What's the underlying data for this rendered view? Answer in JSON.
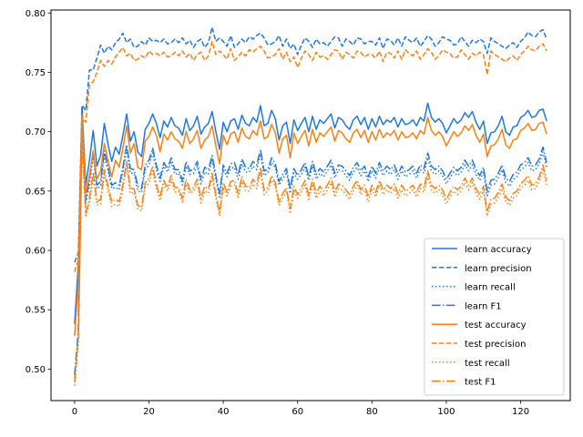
{
  "chart_data": {
    "type": "line",
    "title": "",
    "xlabel": "",
    "ylabel": "",
    "xlim": [
      -6.35,
      133.35
    ],
    "ylim": [
      0.4735,
      0.8025
    ],
    "xticks": [
      0,
      20,
      40,
      60,
      80,
      100,
      120
    ],
    "yticks": [
      0.5,
      0.55,
      0.6,
      0.65,
      0.7,
      0.75,
      0.8
    ],
    "xtick_labels": [
      "0",
      "20",
      "40",
      "60",
      "80",
      "100",
      "120"
    ],
    "ytick_labels": [
      "0.50",
      "0.55",
      "0.60",
      "0.65",
      "0.70",
      "0.75",
      "0.80"
    ],
    "grid": false,
    "legend_position": "bottom-right",
    "colors": {
      "learn": "#1f77e6",
      "test": "#ff7f0e"
    },
    "series": [
      {
        "name": "learn accuracy",
        "color": "#1f77e6",
        "linestyle": "solid",
        "values": [
          0.538,
          0.588,
          0.721,
          0.655,
          0.676,
          0.701,
          0.671,
          0.68,
          0.707,
          0.689,
          0.675,
          0.687,
          0.681,
          0.697,
          0.715,
          0.692,
          0.7,
          0.683,
          0.679,
          0.702,
          0.707,
          0.715,
          0.707,
          0.695,
          0.709,
          0.704,
          0.712,
          0.705,
          0.703,
          0.697,
          0.711,
          0.701,
          0.705,
          0.713,
          0.698,
          0.704,
          0.707,
          0.717,
          0.7,
          0.685,
          0.708,
          0.7,
          0.709,
          0.711,
          0.702,
          0.714,
          0.707,
          0.705,
          0.712,
          0.708,
          0.722,
          0.705,
          0.707,
          0.718,
          0.711,
          0.693,
          0.705,
          0.708,
          0.69,
          0.71,
          0.701,
          0.707,
          0.712,
          0.7,
          0.713,
          0.702,
          0.71,
          0.707,
          0.711,
          0.715,
          0.703,
          0.712,
          0.71,
          0.705,
          0.702,
          0.71,
          0.713,
          0.706,
          0.712,
          0.702,
          0.711,
          0.704,
          0.713,
          0.706,
          0.71,
          0.708,
          0.712,
          0.704,
          0.711,
          0.706,
          0.707,
          0.71,
          0.705,
          0.712,
          0.709,
          0.724,
          0.712,
          0.708,
          0.711,
          0.707,
          0.699,
          0.705,
          0.711,
          0.707,
          0.71,
          0.716,
          0.712,
          0.717,
          0.708,
          0.702,
          0.709,
          0.69,
          0.699,
          0.7,
          0.705,
          0.713,
          0.7,
          0.697,
          0.704,
          0.705,
          0.712,
          0.714,
          0.718,
          0.712,
          0.713,
          0.718,
          0.719,
          0.709
        ]
      },
      {
        "name": "learn precision",
        "color": "#1f77e6",
        "linestyle": "dashed",
        "values": [
          0.59,
          0.598,
          0.722,
          0.718,
          0.752,
          0.752,
          0.762,
          0.773,
          0.766,
          0.772,
          0.769,
          0.775,
          0.778,
          0.783,
          0.775,
          0.778,
          0.771,
          0.772,
          0.776,
          0.773,
          0.779,
          0.776,
          0.777,
          0.775,
          0.778,
          0.774,
          0.775,
          0.778,
          0.775,
          0.779,
          0.774,
          0.777,
          0.771,
          0.776,
          0.778,
          0.771,
          0.775,
          0.788,
          0.776,
          0.779,
          0.776,
          0.772,
          0.781,
          0.771,
          0.774,
          0.778,
          0.775,
          0.78,
          0.778,
          0.781,
          0.783,
          0.779,
          0.773,
          0.774,
          0.776,
          0.781,
          0.772,
          0.778,
          0.77,
          0.774,
          0.765,
          0.773,
          0.779,
          0.776,
          0.771,
          0.778,
          0.774,
          0.775,
          0.772,
          0.776,
          0.78,
          0.779,
          0.772,
          0.778,
          0.776,
          0.773,
          0.779,
          0.778,
          0.774,
          0.776,
          0.776,
          0.773,
          0.779,
          0.77,
          0.778,
          0.777,
          0.773,
          0.779,
          0.772,
          0.78,
          0.777,
          0.775,
          0.779,
          0.772,
          0.776,
          0.781,
          0.778,
          0.772,
          0.775,
          0.78,
          0.778,
          0.777,
          0.773,
          0.774,
          0.78,
          0.776,
          0.772,
          0.777,
          0.775,
          0.778,
          0.776,
          0.766,
          0.779,
          0.776,
          0.774,
          0.772,
          0.77,
          0.773,
          0.775,
          0.771,
          0.776,
          0.779,
          0.784,
          0.781,
          0.78,
          0.784,
          0.786,
          0.778
        ]
      },
      {
        "name": "learn recall",
        "color": "#1f77e6",
        "linestyle": "dotted",
        "values": [
          0.492,
          0.53,
          0.701,
          0.64,
          0.655,
          0.68,
          0.652,
          0.654,
          0.68,
          0.667,
          0.652,
          0.653,
          0.651,
          0.666,
          0.685,
          0.665,
          0.665,
          0.65,
          0.649,
          0.668,
          0.672,
          0.682,
          0.668,
          0.658,
          0.671,
          0.666,
          0.674,
          0.664,
          0.665,
          0.655,
          0.671,
          0.664,
          0.665,
          0.671,
          0.656,
          0.666,
          0.664,
          0.676,
          0.66,
          0.645,
          0.668,
          0.662,
          0.669,
          0.67,
          0.66,
          0.673,
          0.666,
          0.666,
          0.671,
          0.668,
          0.681,
          0.663,
          0.665,
          0.674,
          0.67,
          0.655,
          0.66,
          0.666,
          0.648,
          0.665,
          0.66,
          0.664,
          0.67,
          0.659,
          0.671,
          0.66,
          0.665,
          0.662,
          0.667,
          0.672,
          0.661,
          0.668,
          0.667,
          0.663,
          0.659,
          0.666,
          0.67,
          0.663,
          0.667,
          0.658,
          0.667,
          0.661,
          0.67,
          0.663,
          0.667,
          0.664,
          0.668,
          0.66,
          0.667,
          0.662,
          0.664,
          0.667,
          0.661,
          0.668,
          0.665,
          0.678,
          0.667,
          0.664,
          0.667,
          0.663,
          0.656,
          0.661,
          0.666,
          0.663,
          0.666,
          0.672,
          0.667,
          0.672,
          0.664,
          0.659,
          0.666,
          0.646,
          0.655,
          0.656,
          0.661,
          0.668,
          0.657,
          0.654,
          0.66,
          0.662,
          0.668,
          0.67,
          0.674,
          0.667,
          0.668,
          0.673,
          0.683,
          0.67
        ]
      },
      {
        "name": "learn F1",
        "color": "#1f77e6",
        "linestyle": "dashdot",
        "values": [
          0.495,
          0.532,
          0.705,
          0.642,
          0.66,
          0.684,
          0.655,
          0.658,
          0.684,
          0.67,
          0.655,
          0.657,
          0.655,
          0.67,
          0.689,
          0.669,
          0.668,
          0.654,
          0.652,
          0.672,
          0.676,
          0.686,
          0.672,
          0.661,
          0.674,
          0.669,
          0.678,
          0.668,
          0.668,
          0.659,
          0.675,
          0.667,
          0.668,
          0.675,
          0.66,
          0.67,
          0.668,
          0.68,
          0.663,
          0.648,
          0.672,
          0.665,
          0.673,
          0.674,
          0.664,
          0.677,
          0.67,
          0.669,
          0.675,
          0.672,
          0.685,
          0.667,
          0.668,
          0.678,
          0.673,
          0.658,
          0.664,
          0.669,
          0.652,
          0.669,
          0.663,
          0.668,
          0.674,
          0.662,
          0.675,
          0.664,
          0.669,
          0.666,
          0.671,
          0.676,
          0.665,
          0.672,
          0.671,
          0.667,
          0.663,
          0.67,
          0.674,
          0.667,
          0.671,
          0.662,
          0.671,
          0.665,
          0.674,
          0.667,
          0.671,
          0.668,
          0.672,
          0.664,
          0.671,
          0.666,
          0.668,
          0.671,
          0.665,
          0.672,
          0.669,
          0.682,
          0.671,
          0.668,
          0.671,
          0.667,
          0.66,
          0.665,
          0.67,
          0.667,
          0.67,
          0.676,
          0.671,
          0.676,
          0.668,
          0.663,
          0.67,
          0.65,
          0.659,
          0.66,
          0.665,
          0.672,
          0.661,
          0.658,
          0.664,
          0.666,
          0.672,
          0.674,
          0.678,
          0.671,
          0.672,
          0.677,
          0.687,
          0.674
        ]
      },
      {
        "name": "test accuracy",
        "color": "#ff7f0e",
        "linestyle": "solid",
        "values": [
          0.528,
          0.572,
          0.714,
          0.648,
          0.663,
          0.684,
          0.66,
          0.667,
          0.69,
          0.675,
          0.662,
          0.676,
          0.67,
          0.686,
          0.705,
          0.682,
          0.69,
          0.67,
          0.668,
          0.692,
          0.696,
          0.704,
          0.697,
          0.683,
          0.698,
          0.693,
          0.7,
          0.694,
          0.692,
          0.686,
          0.7,
          0.69,
          0.694,
          0.701,
          0.686,
          0.693,
          0.696,
          0.705,
          0.688,
          0.673,
          0.697,
          0.689,
          0.698,
          0.7,
          0.691,
          0.703,
          0.696,
          0.694,
          0.701,
          0.697,
          0.709,
          0.694,
          0.696,
          0.706,
          0.699,
          0.682,
          0.694,
          0.697,
          0.678,
          0.699,
          0.69,
          0.696,
          0.701,
          0.688,
          0.702,
          0.691,
          0.699,
          0.696,
          0.7,
          0.704,
          0.692,
          0.701,
          0.699,
          0.694,
          0.691,
          0.699,
          0.702,
          0.695,
          0.701,
          0.691,
          0.7,
          0.693,
          0.702,
          0.695,
          0.699,
          0.697,
          0.701,
          0.693,
          0.7,
          0.695,
          0.696,
          0.699,
          0.694,
          0.701,
          0.698,
          0.712,
          0.701,
          0.697,
          0.7,
          0.696,
          0.688,
          0.694,
          0.7,
          0.696,
          0.699,
          0.705,
          0.701,
          0.706,
          0.697,
          0.691,
          0.698,
          0.679,
          0.688,
          0.689,
          0.694,
          0.702,
          0.689,
          0.686,
          0.693,
          0.694,
          0.701,
          0.703,
          0.707,
          0.701,
          0.702,
          0.707,
          0.708,
          0.698
        ]
      },
      {
        "name": "test precision",
        "color": "#ff7f0e",
        "linestyle": "dashed",
        "values": [
          0.582,
          0.592,
          0.712,
          0.708,
          0.74,
          0.742,
          0.75,
          0.76,
          0.755,
          0.76,
          0.757,
          0.763,
          0.767,
          0.771,
          0.764,
          0.766,
          0.76,
          0.761,
          0.764,
          0.762,
          0.768,
          0.765,
          0.766,
          0.764,
          0.767,
          0.763,
          0.764,
          0.767,
          0.764,
          0.768,
          0.763,
          0.766,
          0.76,
          0.765,
          0.767,
          0.76,
          0.764,
          0.776,
          0.765,
          0.768,
          0.765,
          0.761,
          0.77,
          0.76,
          0.763,
          0.767,
          0.764,
          0.769,
          0.767,
          0.77,
          0.772,
          0.768,
          0.762,
          0.763,
          0.765,
          0.77,
          0.761,
          0.767,
          0.759,
          0.763,
          0.754,
          0.762,
          0.768,
          0.765,
          0.76,
          0.767,
          0.763,
          0.764,
          0.761,
          0.765,
          0.769,
          0.768,
          0.761,
          0.767,
          0.765,
          0.762,
          0.768,
          0.767,
          0.763,
          0.765,
          0.765,
          0.762,
          0.768,
          0.759,
          0.767,
          0.766,
          0.762,
          0.768,
          0.761,
          0.769,
          0.766,
          0.764,
          0.768,
          0.761,
          0.765,
          0.77,
          0.767,
          0.761,
          0.764,
          0.769,
          0.767,
          0.766,
          0.762,
          0.763,
          0.769,
          0.765,
          0.761,
          0.766,
          0.764,
          0.767,
          0.765,
          0.748,
          0.768,
          0.765,
          0.763,
          0.761,
          0.759,
          0.762,
          0.764,
          0.76,
          0.765,
          0.768,
          0.772,
          0.769,
          0.768,
          0.772,
          0.774,
          0.768
        ]
      },
      {
        "name": "test recall",
        "color": "#ff7f0e",
        "linestyle": "dotted",
        "values": [
          0.486,
          0.522,
          0.69,
          0.628,
          0.64,
          0.662,
          0.638,
          0.639,
          0.664,
          0.65,
          0.637,
          0.639,
          0.637,
          0.652,
          0.671,
          0.648,
          0.649,
          0.635,
          0.633,
          0.653,
          0.657,
          0.667,
          0.652,
          0.642,
          0.656,
          0.65,
          0.659,
          0.649,
          0.65,
          0.64,
          0.656,
          0.648,
          0.65,
          0.656,
          0.64,
          0.65,
          0.648,
          0.661,
          0.644,
          0.629,
          0.653,
          0.646,
          0.654,
          0.655,
          0.644,
          0.658,
          0.65,
          0.65,
          0.656,
          0.652,
          0.666,
          0.647,
          0.65,
          0.659,
          0.654,
          0.638,
          0.644,
          0.65,
          0.631,
          0.65,
          0.644,
          0.649,
          0.655,
          0.643,
          0.656,
          0.644,
          0.65,
          0.646,
          0.651,
          0.657,
          0.645,
          0.652,
          0.651,
          0.647,
          0.643,
          0.65,
          0.655,
          0.647,
          0.651,
          0.641,
          0.651,
          0.645,
          0.655,
          0.647,
          0.651,
          0.648,
          0.652,
          0.644,
          0.651,
          0.646,
          0.648,
          0.651,
          0.645,
          0.652,
          0.649,
          0.663,
          0.651,
          0.648,
          0.651,
          0.647,
          0.639,
          0.645,
          0.65,
          0.647,
          0.65,
          0.657,
          0.651,
          0.657,
          0.648,
          0.643,
          0.65,
          0.629,
          0.639,
          0.64,
          0.645,
          0.652,
          0.641,
          0.638,
          0.644,
          0.646,
          0.652,
          0.655,
          0.659,
          0.651,
          0.652,
          0.658,
          0.668,
          0.655
        ]
      },
      {
        "name": "test F1",
        "color": "#ff7f0e",
        "linestyle": "dashdot",
        "values": [
          0.489,
          0.525,
          0.694,
          0.631,
          0.644,
          0.666,
          0.641,
          0.643,
          0.668,
          0.654,
          0.641,
          0.643,
          0.641,
          0.656,
          0.675,
          0.652,
          0.652,
          0.638,
          0.636,
          0.657,
          0.661,
          0.671,
          0.656,
          0.645,
          0.659,
          0.653,
          0.663,
          0.653,
          0.653,
          0.644,
          0.66,
          0.651,
          0.653,
          0.66,
          0.644,
          0.654,
          0.652,
          0.665,
          0.647,
          0.632,
          0.657,
          0.649,
          0.658,
          0.659,
          0.648,
          0.662,
          0.654,
          0.653,
          0.66,
          0.656,
          0.67,
          0.651,
          0.653,
          0.663,
          0.657,
          0.641,
          0.648,
          0.653,
          0.635,
          0.654,
          0.647,
          0.653,
          0.659,
          0.646,
          0.66,
          0.648,
          0.654,
          0.65,
          0.655,
          0.661,
          0.649,
          0.656,
          0.655,
          0.651,
          0.647,
          0.654,
          0.659,
          0.651,
          0.655,
          0.645,
          0.655,
          0.649,
          0.659,
          0.651,
          0.655,
          0.652,
          0.656,
          0.648,
          0.655,
          0.65,
          0.652,
          0.655,
          0.649,
          0.656,
          0.653,
          0.667,
          0.655,
          0.652,
          0.655,
          0.651,
          0.643,
          0.649,
          0.654,
          0.651,
          0.654,
          0.661,
          0.655,
          0.661,
          0.652,
          0.647,
          0.654,
          0.633,
          0.643,
          0.644,
          0.649,
          0.656,
          0.645,
          0.642,
          0.648,
          0.65,
          0.656,
          0.659,
          0.663,
          0.655,
          0.656,
          0.662,
          0.672,
          0.659
        ]
      }
    ]
  }
}
